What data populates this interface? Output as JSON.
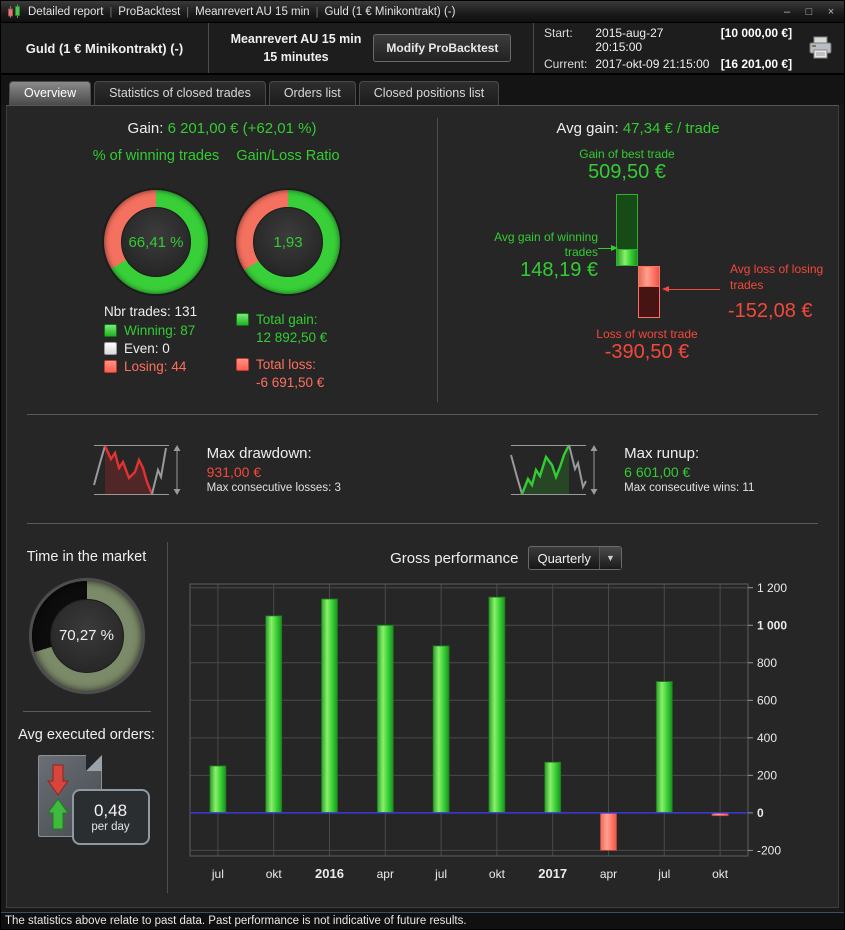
{
  "window": {
    "title_segments": [
      "Detailed report",
      "ProBacktest",
      "Meanrevert AU 15 min",
      "Guld (1 € Minikontrakt) (-)"
    ],
    "controls": {
      "minimize": "–",
      "maximize": "□",
      "close": "×"
    }
  },
  "header": {
    "instrument": "Guld (1 € Minikontrakt) (-)",
    "strategy_name": "Meanrevert AU 15 min",
    "timeframe": "15 minutes",
    "modify_button": "Modify ProBacktest",
    "start_label": "Start:",
    "start_datetime": "2015-aug-27 20:15:00",
    "start_capital": "[10 000,00 €]",
    "current_label": "Current:",
    "current_datetime": "2017-okt-09 21:15:00",
    "current_capital": "[16 201,00 €]"
  },
  "tabs": [
    {
      "label": "Overview"
    },
    {
      "label": "Statistics of closed trades"
    },
    {
      "label": "Orders list"
    },
    {
      "label": "Closed positions list"
    }
  ],
  "overview": {
    "gain_label": "Gain:",
    "gain_value": "6 201,00 € (+62,01 %)",
    "winning_donut": {
      "title": "% of winning trades",
      "center": "66,41 %",
      "green_pct": 66.41
    },
    "ratio_donut": {
      "title": "Gain/Loss Ratio",
      "center": "1,93",
      "green_pct": 65.87
    },
    "nbr_trades_label": "Nbr trades:",
    "nbr_trades": "131",
    "legend": [
      {
        "label": "Winning:",
        "value": "87",
        "color": "#33cc33"
      },
      {
        "label": "Even:",
        "value": "0",
        "color": "#e8e8e8"
      },
      {
        "label": "Losing:",
        "value": "44",
        "color": "#ff6f5e"
      }
    ],
    "total_gain_label": "Total gain:",
    "total_gain": "12 892,50 €",
    "total_loss_label": "Total loss:",
    "total_loss": "-6 691,50 €",
    "avg_gain_label": "Avg gain:",
    "avg_gain_value": "47,34 € / trade",
    "best_trade_label": "Gain of best trade",
    "best_trade": "509,50 €",
    "avg_win_label": "Avg gain of winning trades",
    "avg_win": "148,19 €",
    "avg_loss_label": "Avg loss of losing trades",
    "avg_loss": "-152,08 €",
    "worst_trade_label": "Loss of worst trade",
    "worst_trade": "-390,50 €"
  },
  "risk": {
    "drawdown": {
      "title": "Max drawdown:",
      "value": "931,00 €",
      "sub": "Max consecutive losses: 3"
    },
    "runup": {
      "title": "Max runup:",
      "value": "6 601,00 €",
      "sub": "Max consecutive wins: 11"
    }
  },
  "bottom": {
    "time_in_market": {
      "title": "Time in the market",
      "center": "70,27 %",
      "pct": 70.27
    },
    "avg_orders": {
      "title": "Avg executed orders:",
      "value": "0,48",
      "unit": "per day"
    }
  },
  "chart_data": {
    "type": "bar",
    "title": "Gross performance",
    "period_selected": "Quarterly",
    "categories": [
      "jul",
      "okt",
      "2016",
      "apr",
      "jul",
      "okt",
      "2017",
      "apr",
      "jul",
      "okt"
    ],
    "bold_categories": [
      "2016",
      "2017"
    ],
    "values": [
      250,
      1050,
      1140,
      1000,
      890,
      1150,
      270,
      -200,
      700,
      -15
    ],
    "yticks": [
      1200,
      1000,
      800,
      600,
      400,
      200,
      0,
      -200
    ],
    "bold_yticks": [
      1000,
      0
    ],
    "ylim": [
      -230,
      1220
    ],
    "grid": true,
    "legend_position": "none",
    "colors": {
      "positive": "#44dd33",
      "negative": "#ff7261",
      "zero_line": "#3b3bd6",
      "grid": "#4a4a4a"
    }
  },
  "statusbar": "The statistics above relate to past data. Past performance is not indicative of future results."
}
